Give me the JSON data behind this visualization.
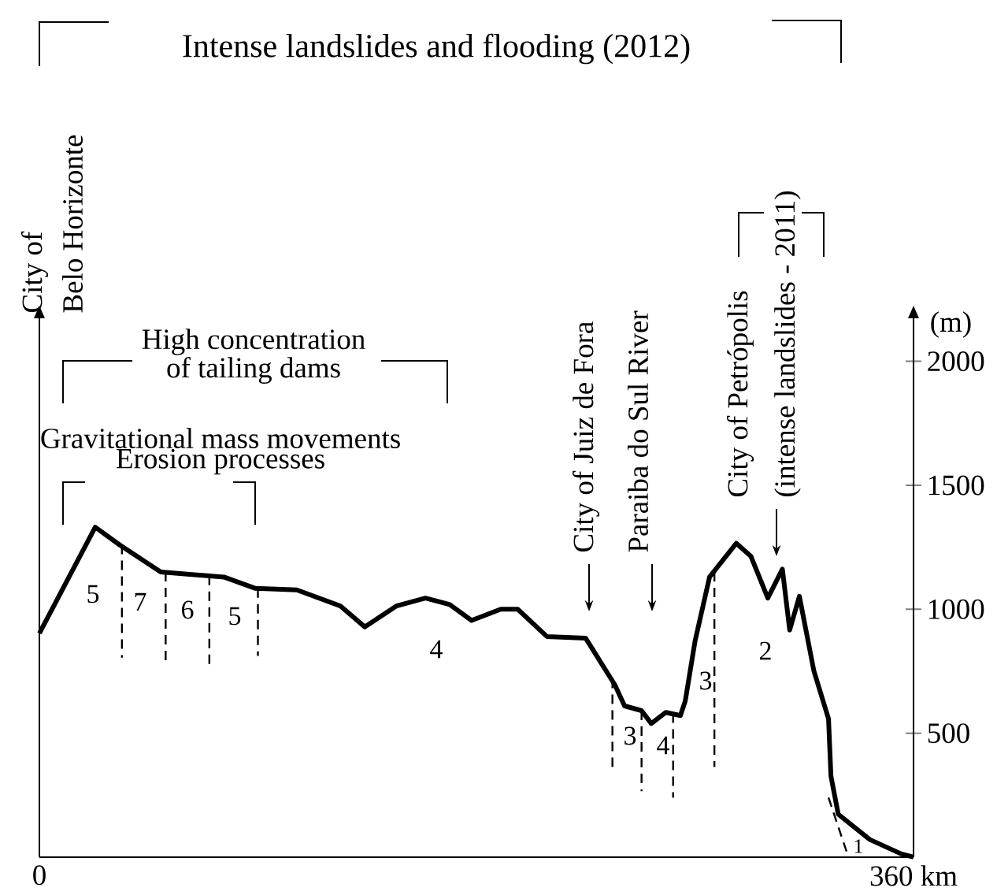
{
  "chart_data": {
    "type": "line",
    "ylabel": "(m)",
    "xlim": [
      0,
      360
    ],
    "ylim": [
      0,
      2180
    ],
    "xticks": [
      {
        "value": 0,
        "label": "0"
      },
      {
        "value": 360,
        "label": "360 km"
      }
    ],
    "yticks": [
      500,
      1000,
      1500,
      2000
    ],
    "series": [
      {
        "color": "#000000",
        "x": [
          0,
          23,
          33,
          50,
          76,
          89,
          106,
          124,
          134,
          147,
          159,
          169,
          178,
          190,
          197,
          209,
          225,
          237,
          241,
          248,
          252,
          258,
          264,
          266,
          270,
          276,
          287,
          293,
          300,
          306,
          309,
          313,
          319,
          325,
          326,
          329,
          342,
          355,
          360
        ],
        "values": [
          903,
          1331,
          1260,
          1150,
          1130,
          1084,
          1078,
          1013,
          929,
          1013,
          1045,
          1019,
          955,
          1000,
          1000,
          890,
          883,
          695,
          610,
          591,
          539,
          584,
          571,
          630,
          870,
          1130,
          1266,
          1214,
          1045,
          1162,
          916,
          1052,
          750,
          558,
          327,
          173,
          71,
          13,
          0
        ]
      },
      {
        "color": "#000000",
        "line_style": "dashed",
        "x": [
          34,
          34,
          null,
          52,
          52,
          null,
          70,
          70,
          null,
          90,
          90,
          null,
          236,
          236,
          null,
          248,
          248,
          null,
          261,
          261,
          null,
          278,
          278,
          null,
          325,
          333
        ],
        "values": [
          1260,
          805,
          null,
          1150,
          786,
          null,
          1135,
          773,
          null,
          1084,
          812,
          null,
          720,
          364,
          null,
          591,
          266,
          null,
          580,
          240,
          null,
          1150,
          364,
          null,
          240,
          6
        ]
      }
    ],
    "annotations": [
      "Intense landslides and flooding (2012)",
      "City of",
      "Belo Horizonte",
      "High concentration",
      "of tailing dams",
      "Gravitational mass movements",
      "Erosion processes",
      "City of Juiz de Fora",
      "Paraiba do Sul River",
      "City of Petrópolis",
      "(intense landslides - 2011)",
      "5",
      "7",
      "6",
      "5",
      "4",
      "3",
      "4",
      "3",
      "2",
      "1"
    ]
  }
}
